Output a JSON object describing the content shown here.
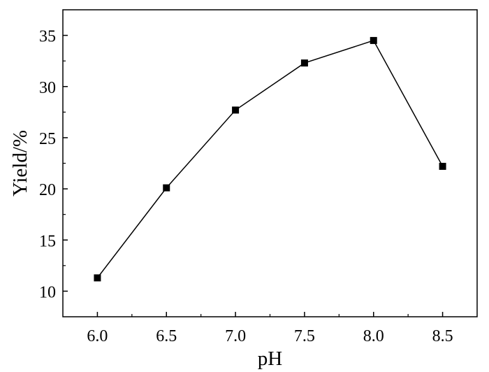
{
  "chart_data": {
    "type": "line",
    "xlabel": "pH",
    "ylabel": "Yield/%",
    "xlim": [
      5.75,
      8.75
    ],
    "ylim": [
      7.5,
      37.5
    ],
    "x_ticks": [
      "6.0",
      "6.5",
      "7.0",
      "7.5",
      "8.0",
      "8.5"
    ],
    "y_ticks": [
      "10",
      "15",
      "20",
      "25",
      "30",
      "35"
    ],
    "grid": false,
    "legend": "none",
    "marker": "square",
    "line_color": "#000000",
    "series": [
      {
        "x": [
          6.0,
          6.5,
          7.0,
          7.5,
          8.0,
          8.5
        ],
        "values": [
          11.3,
          20.1,
          27.7,
          32.3,
          34.5,
          22.2
        ]
      }
    ]
  }
}
